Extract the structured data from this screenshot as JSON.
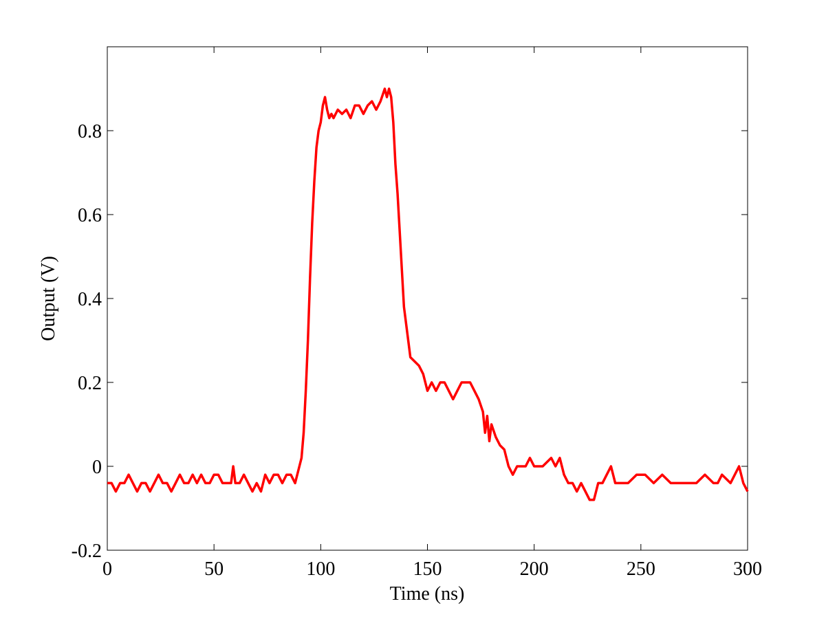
{
  "chart_data": {
    "type": "line",
    "xlabel": "Time (ns)",
    "ylabel": "Output (V)",
    "color": "#ff0000",
    "xlim": [
      0,
      300
    ],
    "ylim": [
      -0.2,
      1.0
    ],
    "xticks": [
      0,
      50,
      100,
      150,
      200,
      250,
      300
    ],
    "yticks": [
      -0.2,
      0,
      0.2,
      0.4,
      0.6,
      0.8
    ],
    "x": [
      0,
      2,
      4,
      6,
      8,
      10,
      12,
      14,
      16,
      18,
      20,
      22,
      24,
      26,
      28,
      30,
      32,
      34,
      36,
      38,
      40,
      42,
      44,
      46,
      48,
      50,
      52,
      54,
      56,
      58,
      59,
      60,
      62,
      64,
      66,
      68,
      70,
      72,
      74,
      76,
      78,
      80,
      82,
      84,
      86,
      88,
      90,
      91,
      92,
      93,
      94,
      95,
      96,
      97,
      98,
      99,
      100,
      101,
      102,
      103,
      104,
      105,
      106,
      108,
      110,
      112,
      114,
      116,
      118,
      120,
      122,
      124,
      126,
      128,
      130,
      131,
      132,
      133,
      134,
      135,
      136,
      137,
      138,
      139,
      140,
      141,
      142,
      144,
      146,
      148,
      150,
      152,
      154,
      156,
      158,
      160,
      162,
      164,
      166,
      168,
      170,
      172,
      174,
      176,
      177,
      178,
      179,
      180,
      182,
      184,
      186,
      188,
      190,
      192,
      194,
      196,
      198,
      200,
      204,
      208,
      210,
      212,
      214,
      216,
      218,
      220,
      222,
      224,
      226,
      228,
      230,
      232,
      234,
      236,
      238,
      240,
      244,
      248,
      252,
      256,
      260,
      264,
      268,
      272,
      276,
      280,
      284,
      286,
      288,
      292,
      296,
      298,
      300
    ],
    "values": [
      -0.04,
      -0.04,
      -0.06,
      -0.04,
      -0.04,
      -0.02,
      -0.04,
      -0.06,
      -0.04,
      -0.04,
      -0.06,
      -0.04,
      -0.02,
      -0.04,
      -0.04,
      -0.06,
      -0.04,
      -0.02,
      -0.04,
      -0.04,
      -0.02,
      -0.04,
      -0.02,
      -0.04,
      -0.04,
      -0.02,
      -0.02,
      -0.04,
      -0.04,
      -0.04,
      0.0,
      -0.04,
      -0.04,
      -0.02,
      -0.04,
      -0.06,
      -0.04,
      -0.06,
      -0.02,
      -0.04,
      -0.02,
      -0.02,
      -0.04,
      -0.02,
      -0.02,
      -0.04,
      0.0,
      0.02,
      0.08,
      0.18,
      0.3,
      0.45,
      0.58,
      0.68,
      0.76,
      0.8,
      0.82,
      0.86,
      0.88,
      0.85,
      0.83,
      0.84,
      0.83,
      0.85,
      0.84,
      0.85,
      0.83,
      0.86,
      0.86,
      0.84,
      0.86,
      0.87,
      0.85,
      0.87,
      0.9,
      0.88,
      0.9,
      0.88,
      0.82,
      0.72,
      0.65,
      0.56,
      0.47,
      0.38,
      0.34,
      0.3,
      0.26,
      0.25,
      0.24,
      0.22,
      0.18,
      0.2,
      0.18,
      0.2,
      0.2,
      0.18,
      0.16,
      0.18,
      0.2,
      0.2,
      0.2,
      0.18,
      0.16,
      0.13,
      0.08,
      0.12,
      0.06,
      0.1,
      0.07,
      0.05,
      0.04,
      0.0,
      -0.02,
      0.0,
      0.0,
      0.0,
      0.02,
      0.0,
      0.0,
      0.02,
      0.0,
      0.02,
      -0.02,
      -0.04,
      -0.04,
      -0.06,
      -0.04,
      -0.06,
      -0.08,
      -0.08,
      -0.04,
      -0.04,
      -0.02,
      0.0,
      -0.04,
      -0.04,
      -0.04,
      -0.02,
      -0.02,
      -0.04,
      -0.02,
      -0.04,
      -0.04,
      -0.04,
      -0.04,
      -0.02,
      -0.04,
      -0.04,
      -0.02,
      -0.04,
      0.0,
      -0.04,
      -0.06
    ]
  }
}
